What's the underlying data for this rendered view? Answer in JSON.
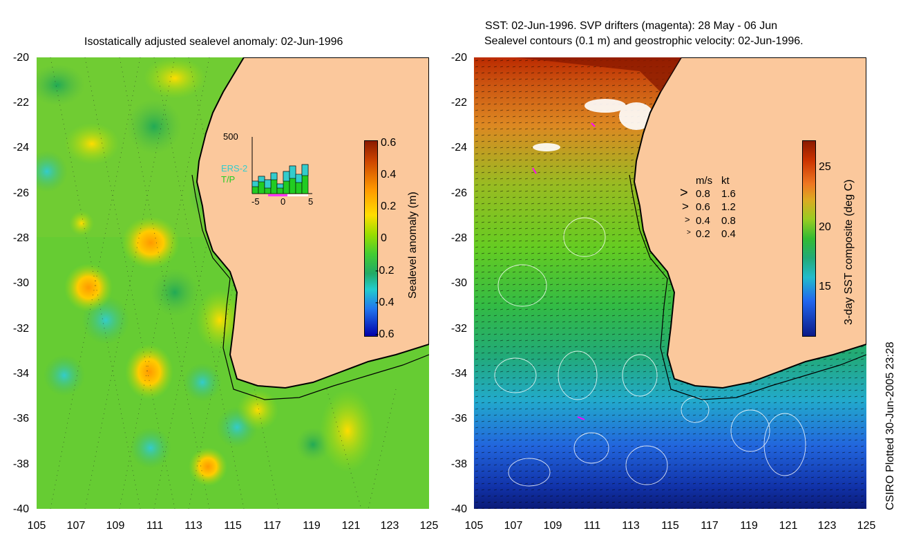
{
  "left_panel": {
    "title": "Isostatically adjusted sealevel anomaly: 02-Jun-1996",
    "colorbar": {
      "label": "Sealevel anomaly (m)",
      "ticks": [
        "0.6",
        "0.4",
        "0.2",
        "0",
        "-0.2",
        "-0.4",
        "-0.6"
      ]
    },
    "inset": {
      "ymax_label": "500",
      "series": [
        "ERS-2",
        "T/P"
      ],
      "series_colors": [
        "#33cccc",
        "#22cc22"
      ],
      "xticks": [
        "-5",
        "0",
        "5"
      ],
      "ers2_values": [
        40,
        35,
        55,
        45,
        30,
        65,
        80,
        50,
        70
      ],
      "tp_values": [
        60,
        90,
        80,
        110,
        70,
        130,
        150,
        90,
        140
      ]
    }
  },
  "right_panel": {
    "title_line1": "SST: 02-Jun-1996. SVP drifters (magenta): 28 May - 06 Jun",
    "title_line2": "Sealevel contours (0.1 m) and geostrophic velocity: 02-Jun-1996.",
    "colorbar": {
      "label": "3-day SST composite (deg C)",
      "ticks": [
        "25",
        "20",
        "15"
      ]
    },
    "velocity_legend": {
      "header_ms": "m/s",
      "header_kt": "kt",
      "rows": [
        {
          "ms": "0.8",
          "kt": "1.6"
        },
        {
          "ms": "0.6",
          "kt": "1.2"
        },
        {
          "ms": "0.4",
          "kt": "0.8"
        },
        {
          "ms": "0.2",
          "kt": "0.4"
        }
      ]
    }
  },
  "axes": {
    "y_ticks": [
      "-20",
      "-22",
      "-24",
      "-26",
      "-28",
      "-30",
      "-32",
      "-34",
      "-36",
      "-38",
      "-40"
    ],
    "x_ticks": [
      "105",
      "107",
      "109",
      "111",
      "113",
      "115",
      "117",
      "119",
      "121",
      "123",
      "125"
    ]
  },
  "footer": "CSIRO Plotted 30-Jun-2005 23:28",
  "colors": {
    "land": "#fbc89c",
    "ocean_mid": "#66cc33"
  }
}
